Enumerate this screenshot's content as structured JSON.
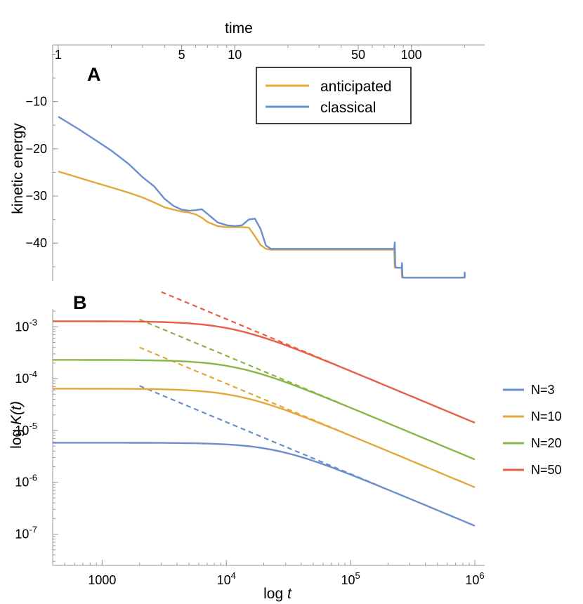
{
  "chart_data": [
    {
      "panel": "A",
      "type": "line",
      "xscale": "log",
      "xlabel": "time",
      "ylabel": "kinetic energy",
      "xlim": [
        0.93,
        260
      ],
      "ylim": [
        -48,
        2
      ],
      "xticks": [
        {
          "value": 1,
          "label": "1"
        },
        {
          "value": 5,
          "label": "5"
        },
        {
          "value": 10,
          "label": "10"
        },
        {
          "value": 50,
          "label": "50"
        },
        {
          "value": 100,
          "label": "100"
        }
      ],
      "yticks": [
        {
          "value": -10,
          "label": "−10"
        },
        {
          "value": -20,
          "label": "−20"
        },
        {
          "value": -30,
          "label": "−30"
        },
        {
          "value": -40,
          "label": "−40"
        }
      ],
      "legend_position": "top-right",
      "series": [
        {
          "name": "anticipated",
          "color": "#e4a73b",
          "x": [
            1,
            1.5,
            2,
            2.5,
            3,
            3.5,
            4,
            4.5,
            5,
            5.5,
            6,
            6.5,
            7,
            8,
            9,
            10,
            11,
            12,
            13,
            14,
            15,
            16,
            80,
            80.5,
            88,
            88.5,
            200
          ],
          "y": [
            -24.8,
            -26.8,
            -28.2,
            -29.3,
            -30.3,
            -31.4,
            -32.4,
            -32.9,
            -33.3,
            -33.5,
            -33.9,
            -34.6,
            -35.5,
            -36.4,
            -36.6,
            -36.6,
            -36.6,
            -36.7,
            -38.5,
            -40.4,
            -41.2,
            -41.4,
            -41.4,
            -45.2,
            -45.2,
            -47.3,
            -47.3
          ]
        },
        {
          "name": "classical",
          "color": "#6b8fce",
          "x": [
            1,
            1.3,
            1.6,
            2,
            2.5,
            3,
            3.5,
            4,
            4.5,
            5,
            5.5,
            6,
            6.5,
            7,
            8,
            9,
            10,
            11,
            12,
            13,
            14,
            15,
            16,
            80,
            80.5,
            81,
            82,
            88,
            88.5,
            89,
            90,
            200,
            200.5,
            201
          ],
          "y": [
            -13.2,
            -15.8,
            -18.0,
            -20.4,
            -23.2,
            -26.0,
            -28.0,
            -30.6,
            -32.1,
            -32.9,
            -33.1,
            -33.0,
            -32.8,
            -33.8,
            -35.6,
            -36.2,
            -36.4,
            -36.2,
            -35.0,
            -34.8,
            -37.0,
            -40.5,
            -41.2,
            -41.2,
            -39.8,
            -44.8,
            -45.2,
            -45.2,
            -44.2,
            -47.1,
            -47.3,
            -47.3,
            -46.2,
            -47.3
          ]
        }
      ]
    },
    {
      "panel": "B",
      "type": "line",
      "xscale": "log",
      "yscale": "log",
      "xlabel_base": "log ",
      "xlabel_var": "t",
      "ylabel_base": "log ",
      "ylabel_var": "K(t)",
      "xlim": [
        400,
        1200000
      ],
      "ylim": [
        2.5e-08,
        0.0022
      ],
      "xticks": [
        {
          "value": 1000,
          "base": "1000",
          "exp": ""
        },
        {
          "value": 10000,
          "base": "10",
          "exp": "4"
        },
        {
          "value": 100000,
          "base": "10",
          "exp": "5"
        },
        {
          "value": 1000000,
          "base": "10",
          "exp": "6"
        }
      ],
      "yticks": [
        {
          "value": 0.001,
          "base": "10",
          "exp": "-3"
        },
        {
          "value": 0.0001,
          "base": "10",
          "exp": "-4"
        },
        {
          "value": 1e-05,
          "base": "10",
          "exp": "-5"
        },
        {
          "value": 1e-06,
          "base": "10",
          "exp": "-6"
        },
        {
          "value": 1e-07,
          "base": "10",
          "exp": "-7"
        }
      ],
      "legend_position": "right",
      "series": [
        {
          "name": "N=3",
          "color": "#6b8fce",
          "A": 5.8e-06,
          "tc": 25000,
          "asym_from": 2000
        },
        {
          "name": "N=10",
          "color": "#e4a73b",
          "A": 6.4e-05,
          "tc": 12500,
          "asym_from": 2000
        },
        {
          "name": "N=20",
          "color": "#8ab547",
          "A": 0.00023,
          "tc": 12000,
          "asym_from": 2000
        },
        {
          "name": "N=50",
          "color": "#e85e47",
          "A": 0.00128,
          "tc": 11000,
          "asym_from": 3000
        }
      ],
      "model": "K(t) = A / (1 + (t/tc)^2)^(1/2); dashed asymptote A*tc/t"
    }
  ],
  "panel_labels": {
    "a": "A",
    "b": "B"
  }
}
